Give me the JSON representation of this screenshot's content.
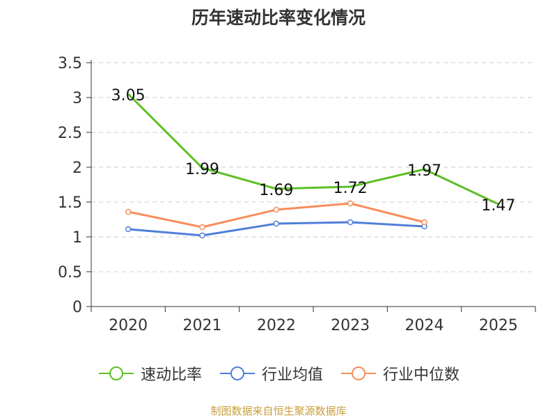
{
  "chart_data": {
    "type": "line",
    "title": "历年速动比率变化情况",
    "categories": [
      "2020",
      "2021",
      "2022",
      "2023",
      "2024",
      "2025"
    ],
    "ylim": [
      0,
      3.5
    ],
    "yticks": [
      "0",
      "0.5",
      "1",
      "1.5",
      "2",
      "2.5",
      "3",
      "3.5"
    ],
    "grid": true,
    "legend_position": "bottom",
    "series": [
      {
        "name": "速动比率",
        "color": "#5cbf25",
        "labeled": true,
        "values": [
          3.05,
          1.99,
          1.69,
          1.72,
          1.97,
          1.47
        ],
        "labels": [
          "3.05",
          "1.99",
          "1.69",
          "1.72",
          "1.97",
          "1.47"
        ]
      },
      {
        "name": "行业均值",
        "color": "#4f7fd9",
        "labeled": false,
        "values": [
          1.11,
          1.02,
          1.19,
          1.21,
          1.15,
          null
        ]
      },
      {
        "name": "行业中位数",
        "color": "#f78d5b",
        "labeled": false,
        "values": [
          1.36,
          1.14,
          1.39,
          1.48,
          1.21,
          null
        ]
      }
    ]
  },
  "source": {
    "text": "制图数据来自恒生聚源数据库",
    "color": "#c8a03c"
  }
}
